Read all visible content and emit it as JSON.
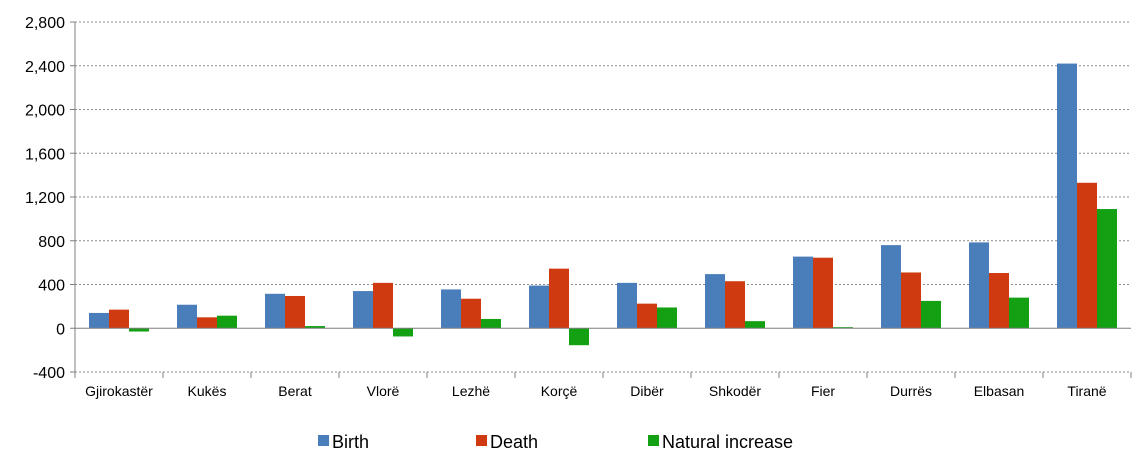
{
  "chart_data": {
    "type": "bar",
    "categories": [
      "Gjirokastër",
      "Kukës",
      "Berat",
      "Vlorë",
      "Lezhë",
      "Korçë",
      "Dibër",
      "Shkodër",
      "Fier",
      "Durrës",
      "Elbasan",
      "Tiranë"
    ],
    "series": [
      {
        "name": "Birth",
        "color": "#4a7ebb",
        "values": [
          140,
          215,
          315,
          340,
          355,
          390,
          415,
          495,
          655,
          760,
          785,
          2420
        ]
      },
      {
        "name": "Death",
        "color": "#d03a10",
        "values": [
          170,
          100,
          295,
          415,
          270,
          545,
          225,
          430,
          645,
          510,
          505,
          1330
        ]
      },
      {
        "name": "Natural increase",
        "color": "#13a013",
        "values": [
          -30,
          115,
          20,
          -75,
          85,
          -155,
          190,
          65,
          10,
          250,
          280,
          1090
        ]
      }
    ],
    "yticks": [
      "2,800",
      "2,400",
      "2,000",
      "1,600",
      "1,200",
      "800",
      "400",
      "0",
      "-400"
    ],
    "ylim": [
      -400,
      2800
    ],
    "grid": true,
    "legend_position": "bottom"
  }
}
